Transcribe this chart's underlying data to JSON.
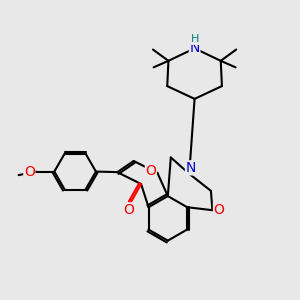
{
  "background_color": "#e8e8e8",
  "bond_color": "#000000",
  "bond_width": 1.5,
  "atom_colors": {
    "O": "#ff0000",
    "N": "#0000cc",
    "H": "#008080",
    "C": "#000000"
  },
  "font_size": 9,
  "fig_size": [
    3.0,
    3.0
  ],
  "dpi": 100
}
